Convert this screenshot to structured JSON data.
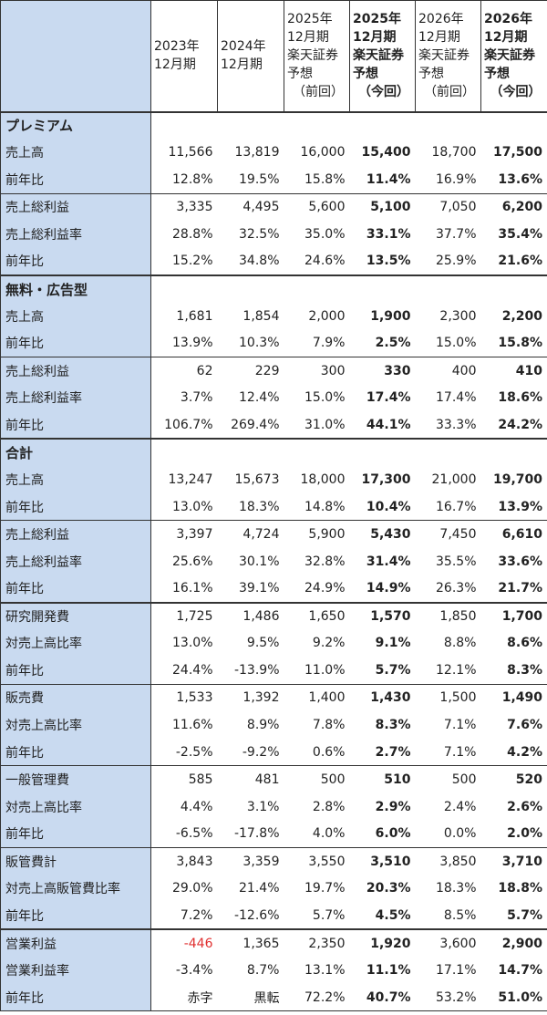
{
  "header": {
    "columns": [
      {
        "lines": [
          "2023年",
          "12月期"
        ],
        "bold": false
      },
      {
        "lines": [
          "2024年",
          "12月期"
        ],
        "bold": false
      },
      {
        "lines": [
          "2025年",
          "12月期",
          "楽天証券",
          "予想",
          "（前回）"
        ],
        "bold": false
      },
      {
        "lines": [
          "2025年",
          "12月期",
          "楽天証券",
          "予想",
          "（今回）"
        ],
        "bold": true
      },
      {
        "lines": [
          "2026年",
          "12月期",
          "楽天証券",
          "予想",
          "（前回）"
        ],
        "bold": false
      },
      {
        "lines": [
          "2026年",
          "12月期",
          "楽天証券",
          "予想",
          "（今回）"
        ],
        "bold": true
      }
    ]
  },
  "rows": [
    {
      "label": "プレミアム",
      "section": true,
      "sep": "thick",
      "values": [
        "",
        "",
        "",
        "",
        "",
        ""
      ]
    },
    {
      "label": "売上高",
      "sep": "none",
      "values": [
        "11,566",
        "13,819",
        "16,000",
        "15,400",
        "18,700",
        "17,500"
      ]
    },
    {
      "label": "前年比",
      "sep": "none",
      "values": [
        "12.8%",
        "19.5%",
        "15.8%",
        "11.4%",
        "16.9%",
        "13.6%"
      ]
    },
    {
      "label": "売上総利益",
      "sep": "thin",
      "values": [
        "3,335",
        "4,495",
        "5,600",
        "5,100",
        "7,050",
        "6,200"
      ]
    },
    {
      "label": "売上総利益率",
      "sep": "none",
      "values": [
        "28.8%",
        "32.5%",
        "35.0%",
        "33.1%",
        "37.7%",
        "35.4%"
      ]
    },
    {
      "label": "前年比",
      "sep": "none",
      "values": [
        "15.2%",
        "34.8%",
        "24.6%",
        "13.5%",
        "25.9%",
        "21.6%"
      ]
    },
    {
      "label": "無料・広告型",
      "section": true,
      "sep": "thick",
      "values": [
        "",
        "",
        "",
        "",
        "",
        ""
      ]
    },
    {
      "label": "売上高",
      "sep": "none",
      "values": [
        "1,681",
        "1,854",
        "2,000",
        "1,900",
        "2,300",
        "2,200"
      ]
    },
    {
      "label": "前年比",
      "sep": "none",
      "values": [
        "13.9%",
        "10.3%",
        "7.9%",
        "2.5%",
        "15.0%",
        "15.8%"
      ]
    },
    {
      "label": "売上総利益",
      "sep": "thin",
      "values": [
        "62",
        "229",
        "300",
        "330",
        "400",
        "410"
      ]
    },
    {
      "label": "売上総利益率",
      "sep": "none",
      "values": [
        "3.7%",
        "12.4%",
        "15.0%",
        "17.4%",
        "17.4%",
        "18.6%"
      ]
    },
    {
      "label": "前年比",
      "sep": "none",
      "values": [
        "106.7%",
        "269.4%",
        "31.0%",
        "44.1%",
        "33.3%",
        "24.2%"
      ]
    },
    {
      "label": "合計",
      "section": true,
      "sep": "thick",
      "values": [
        "",
        "",
        "",
        "",
        "",
        ""
      ]
    },
    {
      "label": "売上高",
      "sep": "none",
      "values": [
        "13,247",
        "15,673",
        "18,000",
        "17,300",
        "21,000",
        "19,700"
      ]
    },
    {
      "label": "前年比",
      "sep": "none",
      "values": [
        "13.0%",
        "18.3%",
        "14.8%",
        "10.4%",
        "16.7%",
        "13.9%"
      ]
    },
    {
      "label": "売上総利益",
      "sep": "thin",
      "values": [
        "3,397",
        "4,724",
        "5,900",
        "5,430",
        "7,450",
        "6,610"
      ]
    },
    {
      "label": "売上総利益率",
      "sep": "none",
      "values": [
        "25.6%",
        "30.1%",
        "32.8%",
        "31.4%",
        "35.5%",
        "33.6%"
      ]
    },
    {
      "label": "前年比",
      "sep": "none",
      "values": [
        "16.1%",
        "39.1%",
        "24.9%",
        "14.9%",
        "26.3%",
        "21.7%"
      ]
    },
    {
      "label": "研究開発費",
      "sep": "thick",
      "values": [
        "1,725",
        "1,486",
        "1,650",
        "1,570",
        "1,850",
        "1,700"
      ]
    },
    {
      "label": "対売上高比率",
      "sep": "none",
      "values": [
        "13.0%",
        "9.5%",
        "9.2%",
        "9.1%",
        "8.8%",
        "8.6%"
      ]
    },
    {
      "label": "前年比",
      "sep": "none",
      "values": [
        "24.4%",
        "-13.9%",
        "11.0%",
        "5.7%",
        "12.1%",
        "8.3%"
      ]
    },
    {
      "label": "販売費",
      "sep": "thin",
      "values": [
        "1,533",
        "1,392",
        "1,400",
        "1,430",
        "1,500",
        "1,490"
      ]
    },
    {
      "label": "対売上高比率",
      "sep": "none",
      "values": [
        "11.6%",
        "8.9%",
        "7.8%",
        "8.3%",
        "7.1%",
        "7.6%"
      ]
    },
    {
      "label": "前年比",
      "sep": "none",
      "values": [
        "-2.5%",
        "-9.2%",
        "0.6%",
        "2.7%",
        "7.1%",
        "4.2%"
      ]
    },
    {
      "label": "一般管理費",
      "sep": "thin",
      "values": [
        "585",
        "481",
        "500",
        "510",
        "500",
        "520"
      ]
    },
    {
      "label": "対売上高比率",
      "sep": "none",
      "values": [
        "4.4%",
        "3.1%",
        "2.8%",
        "2.9%",
        "2.4%",
        "2.6%"
      ]
    },
    {
      "label": "前年比",
      "sep": "none",
      "values": [
        "-6.5%",
        "-17.8%",
        "4.0%",
        "6.0%",
        "0.0%",
        "2.0%"
      ]
    },
    {
      "label": "販管費計",
      "sep": "thin",
      "values": [
        "3,843",
        "3,359",
        "3,550",
        "3,510",
        "3,850",
        "3,710"
      ]
    },
    {
      "label": "対売上高販管費比率",
      "sep": "none",
      "values": [
        "29.0%",
        "21.4%",
        "19.7%",
        "20.3%",
        "18.3%",
        "18.8%"
      ]
    },
    {
      "label": "前年比",
      "sep": "none",
      "values": [
        "7.2%",
        "-12.6%",
        "5.7%",
        "4.5%",
        "8.5%",
        "5.7%"
      ]
    },
    {
      "label": "営業利益",
      "sep": "thick",
      "values": [
        "-446",
        "1,365",
        "2,350",
        "1,920",
        "3,600",
        "2,900"
      ],
      "red_first": true
    },
    {
      "label": "営業利益率",
      "sep": "none",
      "values": [
        "-3.4%",
        "8.7%",
        "13.1%",
        "11.1%",
        "17.1%",
        "14.7%"
      ]
    },
    {
      "label": "前年比",
      "sep": "none",
      "values": [
        "赤字",
        "黒転",
        "72.2%",
        "40.7%",
        "53.2%",
        "51.0%"
      ]
    }
  ],
  "colors": {
    "label_bg": "#c9daf0",
    "negative": "#e03030",
    "border": "#333333"
  }
}
